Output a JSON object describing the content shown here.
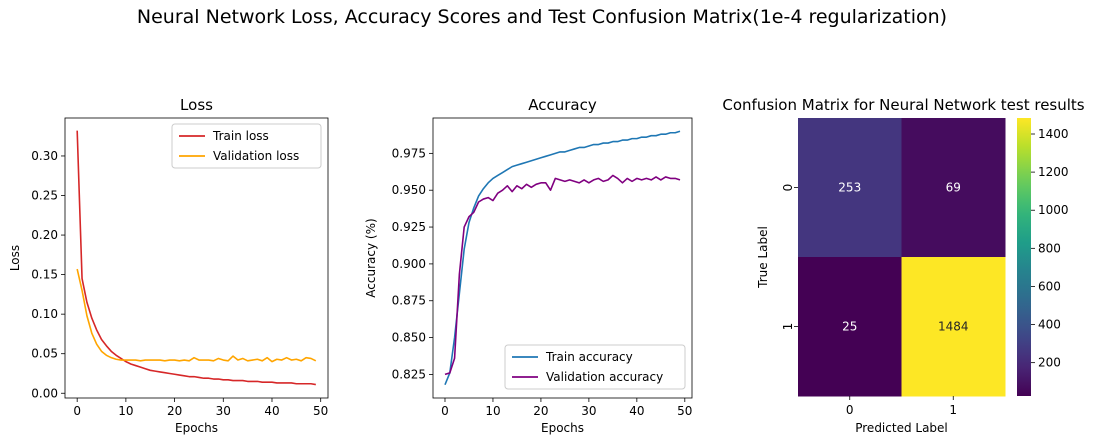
{
  "figure": {
    "title": "Neural Network Loss, Accuracy Scores and Test Confusion Matrix(1e-4 regularization)"
  },
  "chart_data": [
    {
      "type": "line",
      "title": "Loss",
      "xlabel": "Epochs",
      "ylabel": "Loss",
      "xlim": [
        -2.5,
        51.5
      ],
      "ylim": [
        -0.006,
        0.348
      ],
      "xticks": [
        "0",
        "10",
        "20",
        "30",
        "40",
        "50"
      ],
      "yticks": [
        "0.00",
        "0.05",
        "0.10",
        "0.15",
        "0.20",
        "0.25",
        "0.30"
      ],
      "grid": false,
      "legend": "upper right",
      "series": [
        {
          "name": "Train loss",
          "color": "#d62728",
          "x": [
            0,
            1,
            2,
            3,
            4,
            5,
            6,
            7,
            8,
            9,
            10,
            11,
            12,
            13,
            14,
            15,
            16,
            17,
            18,
            19,
            20,
            21,
            22,
            23,
            24,
            25,
            26,
            27,
            28,
            29,
            30,
            31,
            32,
            33,
            34,
            35,
            36,
            37,
            38,
            39,
            40,
            41,
            42,
            43,
            44,
            45,
            46,
            47,
            48,
            49
          ],
          "y": [
            0.332,
            0.145,
            0.115,
            0.095,
            0.08,
            0.068,
            0.06,
            0.053,
            0.048,
            0.044,
            0.04,
            0.037,
            0.035,
            0.033,
            0.031,
            0.029,
            0.028,
            0.027,
            0.026,
            0.025,
            0.024,
            0.023,
            0.022,
            0.021,
            0.021,
            0.02,
            0.019,
            0.019,
            0.018,
            0.018,
            0.017,
            0.017,
            0.016,
            0.016,
            0.016,
            0.015,
            0.015,
            0.015,
            0.014,
            0.014,
            0.014,
            0.013,
            0.013,
            0.013,
            0.013,
            0.012,
            0.012,
            0.012,
            0.012,
            0.011
          ]
        },
        {
          "name": "Validation loss",
          "color": "#ffa500",
          "x": [
            0,
            1,
            2,
            3,
            4,
            5,
            6,
            7,
            8,
            9,
            10,
            11,
            12,
            13,
            14,
            15,
            16,
            17,
            18,
            19,
            20,
            21,
            22,
            23,
            24,
            25,
            26,
            27,
            28,
            29,
            30,
            31,
            32,
            33,
            34,
            35,
            36,
            37,
            38,
            39,
            40,
            41,
            42,
            43,
            44,
            45,
            46,
            47,
            48,
            49
          ],
          "y": [
            0.157,
            0.13,
            0.098,
            0.076,
            0.062,
            0.053,
            0.048,
            0.045,
            0.043,
            0.042,
            0.042,
            0.042,
            0.042,
            0.041,
            0.042,
            0.042,
            0.042,
            0.042,
            0.041,
            0.042,
            0.042,
            0.041,
            0.042,
            0.041,
            0.045,
            0.042,
            0.042,
            0.042,
            0.041,
            0.044,
            0.042,
            0.041,
            0.047,
            0.042,
            0.044,
            0.041,
            0.042,
            0.043,
            0.041,
            0.045,
            0.04,
            0.043,
            0.042,
            0.045,
            0.042,
            0.043,
            0.041,
            0.045,
            0.044,
            0.041
          ]
        }
      ]
    },
    {
      "type": "line",
      "title": "Accuracy",
      "xlabel": "Epochs",
      "ylabel": "Accuracy (%)",
      "xlim": [
        -2.5,
        51.5
      ],
      "ylim": [
        0.809,
        0.999
      ],
      "xticks": [
        "0",
        "10",
        "20",
        "30",
        "40",
        "50"
      ],
      "yticks": [
        "0.825",
        "0.850",
        "0.875",
        "0.900",
        "0.925",
        "0.950",
        "0.975"
      ],
      "grid": false,
      "legend": "lower right",
      "series": [
        {
          "name": "Train accuracy",
          "color": "#1f77b4",
          "x": [
            0,
            1,
            2,
            3,
            4,
            5,
            6,
            7,
            8,
            9,
            10,
            11,
            12,
            13,
            14,
            15,
            16,
            17,
            18,
            19,
            20,
            21,
            22,
            23,
            24,
            25,
            26,
            27,
            28,
            29,
            30,
            31,
            32,
            33,
            34,
            35,
            36,
            37,
            38,
            39,
            40,
            41,
            42,
            43,
            44,
            45,
            46,
            47,
            48,
            49
          ],
          "y": [
            0.818,
            0.826,
            0.85,
            0.88,
            0.91,
            0.928,
            0.938,
            0.946,
            0.951,
            0.955,
            0.958,
            0.96,
            0.962,
            0.964,
            0.966,
            0.967,
            0.968,
            0.969,
            0.97,
            0.971,
            0.972,
            0.973,
            0.974,
            0.975,
            0.976,
            0.976,
            0.977,
            0.978,
            0.979,
            0.979,
            0.98,
            0.981,
            0.981,
            0.982,
            0.982,
            0.983,
            0.983,
            0.984,
            0.984,
            0.985,
            0.985,
            0.986,
            0.986,
            0.987,
            0.987,
            0.988,
            0.988,
            0.989,
            0.989,
            0.99
          ]
        },
        {
          "name": "Validation accuracy",
          "color": "#800080",
          "x": [
            0,
            1,
            2,
            3,
            4,
            5,
            6,
            7,
            8,
            9,
            10,
            11,
            12,
            13,
            14,
            15,
            16,
            17,
            18,
            19,
            20,
            21,
            22,
            23,
            24,
            25,
            26,
            27,
            28,
            29,
            30,
            31,
            32,
            33,
            34,
            35,
            36,
            37,
            38,
            39,
            40,
            41,
            42,
            43,
            44,
            45,
            46,
            47,
            48,
            49
          ],
          "y": [
            0.825,
            0.826,
            0.836,
            0.893,
            0.925,
            0.932,
            0.935,
            0.942,
            0.944,
            0.945,
            0.943,
            0.948,
            0.95,
            0.953,
            0.949,
            0.953,
            0.951,
            0.954,
            0.952,
            0.954,
            0.955,
            0.955,
            0.95,
            0.958,
            0.957,
            0.956,
            0.957,
            0.956,
            0.955,
            0.957,
            0.955,
            0.957,
            0.958,
            0.956,
            0.957,
            0.96,
            0.958,
            0.955,
            0.958,
            0.956,
            0.958,
            0.957,
            0.958,
            0.957,
            0.959,
            0.957,
            0.959,
            0.958,
            0.958,
            0.957
          ]
        }
      ]
    },
    {
      "type": "heatmap",
      "title": "Confusion Matrix for Neural Network test results",
      "xlabel": "Predicted Label",
      "ylabel": "True Label",
      "x_categories": [
        "0",
        "1"
      ],
      "y_categories": [
        "0",
        "1"
      ],
      "values": [
        [
          253,
          69
        ],
        [
          25,
          1484
        ]
      ],
      "colormap": "viridis",
      "vmin": 25,
      "vmax": 1484,
      "colorbar_ticks": [
        200,
        400,
        600,
        800,
        1000,
        1200,
        1400
      ],
      "colorbar_tick_labels": [
        "200",
        "400",
        "600",
        "800",
        "1000",
        "1200",
        "1400"
      ]
    }
  ]
}
